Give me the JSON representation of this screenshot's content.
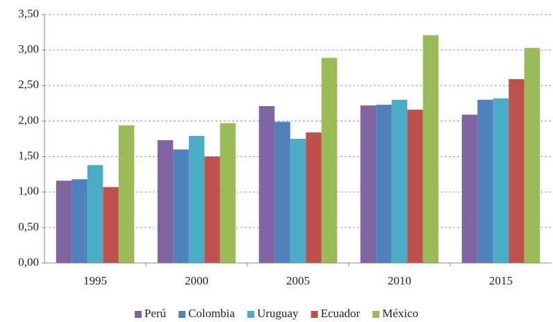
{
  "chart_data": {
    "type": "bar",
    "categories": [
      "1995",
      "2000",
      "2005",
      "2010",
      "2015"
    ],
    "series": [
      {
        "name": "Perú",
        "color": "#8064a2",
        "values": [
          1.16,
          1.73,
          2.21,
          2.22,
          2.09
        ]
      },
      {
        "name": "Colombia",
        "color": "#4f81bd",
        "values": [
          1.18,
          1.6,
          1.99,
          2.23,
          2.3
        ]
      },
      {
        "name": "Uruguay",
        "color": "#4bacc6",
        "values": [
          1.38,
          1.79,
          1.75,
          2.3,
          2.32
        ]
      },
      {
        "name": "Ecuador",
        "color": "#c0504d",
        "values": [
          1.07,
          1.5,
          1.84,
          2.16,
          2.59
        ]
      },
      {
        "name": "México",
        "color": "#9bbb59",
        "values": [
          1.94,
          1.97,
          2.89,
          3.21,
          3.03
        ]
      }
    ],
    "ylim": [
      0,
      3.5
    ],
    "yticks": [
      {
        "value": 0,
        "label": "0,00"
      },
      {
        "value": 0.5,
        "label": "0,50"
      },
      {
        "value": 1,
        "label": "1,00"
      },
      {
        "value": 1.5,
        "label": "1,50"
      },
      {
        "value": 2,
        "label": "2,00"
      },
      {
        "value": 2.5,
        "label": "2,50"
      },
      {
        "value": 3,
        "label": "3,00"
      },
      {
        "value": 3.5,
        "label": "3,50"
      }
    ],
    "grid": true,
    "legend": "bottom"
  }
}
